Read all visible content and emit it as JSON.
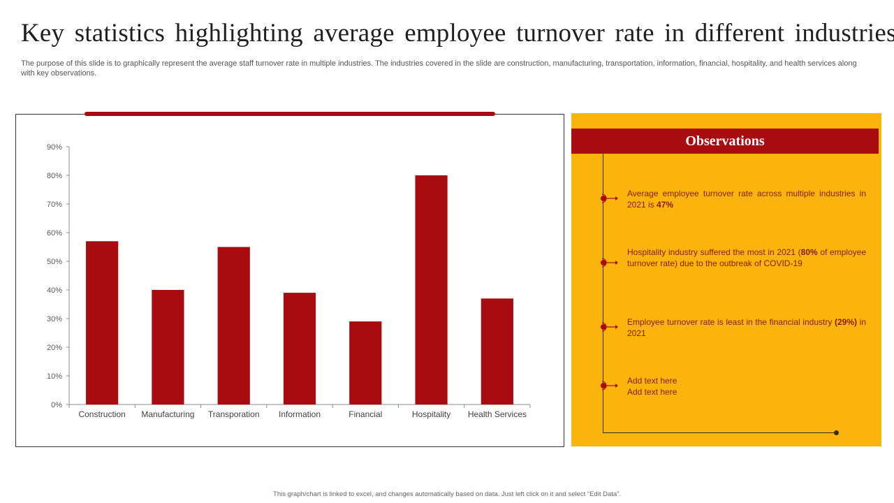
{
  "slide": {
    "title": "Key statistics highlighting average employee turnover rate in different industries",
    "subtitle": "The purpose of this slide is to graphically represent the average staff turnover rate in multiple industries. The industries covered in the slide are construction, manufacturing, transportation, information, financial, hospitality, and health services along with key observations.",
    "footer": "This graph/chart is linked to excel, and changes automatically based on data. Just left click on it and select “Edit Data”."
  },
  "chart_data": {
    "type": "bar",
    "title": "",
    "xlabel": "",
    "ylabel": "",
    "categories": [
      "Construction",
      "Manufacturing",
      "Transporation",
      "Information",
      "Financial",
      "Hospitality",
      "Health Services"
    ],
    "values": [
      57,
      40,
      55,
      39,
      29,
      80,
      37
    ],
    "unit": "%",
    "ylim": [
      0,
      90
    ],
    "yticks": [
      0,
      10,
      20,
      30,
      40,
      50,
      60,
      70,
      80,
      90
    ],
    "ytick_labels": [
      "0%",
      "10%",
      "20%",
      "30%",
      "40%",
      "50%",
      "60%",
      "70%",
      "80%",
      "90%"
    ],
    "grid": false,
    "legend": "none",
    "bar_color": "#a80c10"
  },
  "observations": {
    "heading": "Observations",
    "items": [
      {
        "pre": "Average employee turnover rate across multiple industries in 2021 is ",
        "bold": "47%",
        "post": ""
      },
      {
        "pre": "Hospitality industry suffered the most in 2021 (",
        "bold": "80%",
        "post": " of employee turnover rate) due to the outbreak of COVID-19"
      },
      {
        "pre": "Employee turnover rate is least in the financial industry ",
        "bold": "(29%)",
        "post": " in 2021"
      },
      {
        "pre": "Add text here\nAdd text here",
        "bold": "",
        "post": ""
      }
    ]
  },
  "colors": {
    "accent_red": "#a80c10",
    "panel_yellow": "#fbb40c",
    "obs_text": "#8a1a00"
  }
}
